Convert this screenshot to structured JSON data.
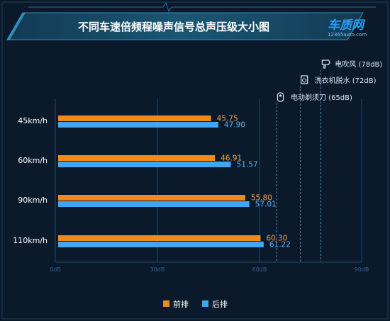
{
  "header": {
    "title": "不同车速倍频程噪声信号总声压级大小图",
    "logo_main": "车质网",
    "logo_sub": "12365auto.com"
  },
  "chart_data": {
    "type": "bar",
    "orientation": "horizontal",
    "categories": [
      "45km/h",
      "60km/h",
      "90km/h",
      "110km/h"
    ],
    "series": [
      {
        "name": "前排",
        "color": "#f08a1d",
        "label_color": "#f5a04a",
        "values": [
          45.75,
          46.91,
          55.8,
          60.3
        ]
      },
      {
        "name": "后排",
        "color": "#3fa6ef",
        "label_color": "#5bb4f5",
        "values": [
          47.9,
          51.57,
          57.01,
          61.22
        ]
      }
    ],
    "value_labels": [
      [
        "45.75",
        "46.91",
        "55.80",
        "60.30"
      ],
      [
        "47.90",
        "51.57",
        "57.01",
        "61.22"
      ]
    ],
    "xlim": [
      0,
      90
    ],
    "ticks": [
      0,
      30,
      60,
      90
    ],
    "tick_labels": [
      "0dB",
      "30dB",
      "60dB",
      "90dB"
    ],
    "reference_lines": [
      {
        "label": "电吹风 (78dB)",
        "value": 78,
        "icon": "hair-dryer-icon"
      },
      {
        "label": "洗衣机脱水 (72dB)",
        "value": 72,
        "icon": "washing-machine-icon"
      },
      {
        "label": "电动剃须刀 (65dB)",
        "value": 65,
        "icon": "shaver-icon"
      }
    ],
    "legend_position": "bottom-center",
    "grid": true
  }
}
